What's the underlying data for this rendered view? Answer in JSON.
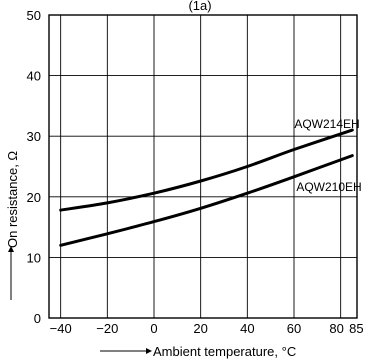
{
  "chart_data": {
    "type": "line",
    "title": "(1a)",
    "xlabel": "Ambient temperature, °C",
    "ylabel": "On resistance, Ω",
    "xlim": [
      -45,
      87
    ],
    "ylim": [
      0,
      50
    ],
    "xticks": [
      -40,
      -20,
      0,
      20,
      40,
      60,
      80,
      85
    ],
    "yticks": [
      0,
      10,
      20,
      30,
      40,
      50
    ],
    "x_gridlines": [
      -40,
      -20,
      0,
      20,
      40,
      60,
      80
    ],
    "y_gridlines": [
      10,
      20,
      30,
      40
    ],
    "grid": true,
    "legend": "none",
    "series": [
      {
        "name": "AQW214EH",
        "x": [
          -40,
          -20,
          0,
          20,
          40,
          60,
          85
        ],
        "y": [
          17.8,
          19.0,
          20.6,
          22.6,
          25.0,
          27.8,
          31.0
        ]
      },
      {
        "name": "AQW210EH",
        "x": [
          -40,
          -20,
          0,
          20,
          40,
          60,
          85
        ],
        "y": [
          12.0,
          13.9,
          15.9,
          18.1,
          20.6,
          23.3,
          26.8
        ]
      }
    ]
  }
}
